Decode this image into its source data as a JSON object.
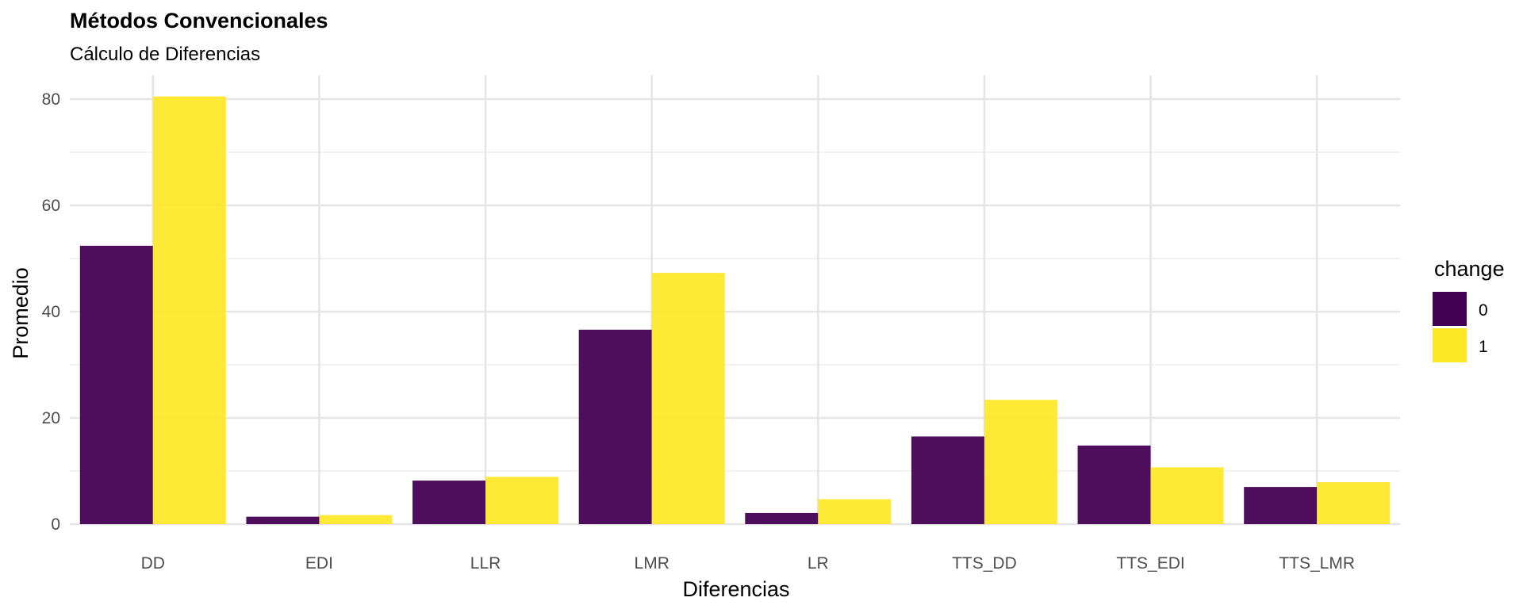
{
  "chart_data": {
    "type": "bar",
    "title": "Métodos Convencionales",
    "subtitle": "Cálculo de Diferencias",
    "xlabel": "Diferencias",
    "ylabel": "Promedio",
    "categories": [
      "DD",
      "EDI",
      "LLR",
      "LMR",
      "LR",
      "TTS_DD",
      "TTS_EDI",
      "TTS_LMR"
    ],
    "series": [
      {
        "name": "0",
        "color": "#440154",
        "values": [
          52.4,
          1.4,
          8.2,
          36.6,
          2.1,
          16.5,
          14.8,
          7.0
        ]
      },
      {
        "name": "1",
        "color": "#FDE725",
        "values": [
          80.5,
          1.7,
          8.9,
          47.3,
          4.7,
          23.4,
          10.7,
          7.9
        ]
      }
    ],
    "ylim": [
      0,
      83
    ],
    "yticks": [
      0,
      20,
      40,
      60,
      80
    ],
    "legend_title": "change",
    "legend_position": "right",
    "grid": true
  }
}
